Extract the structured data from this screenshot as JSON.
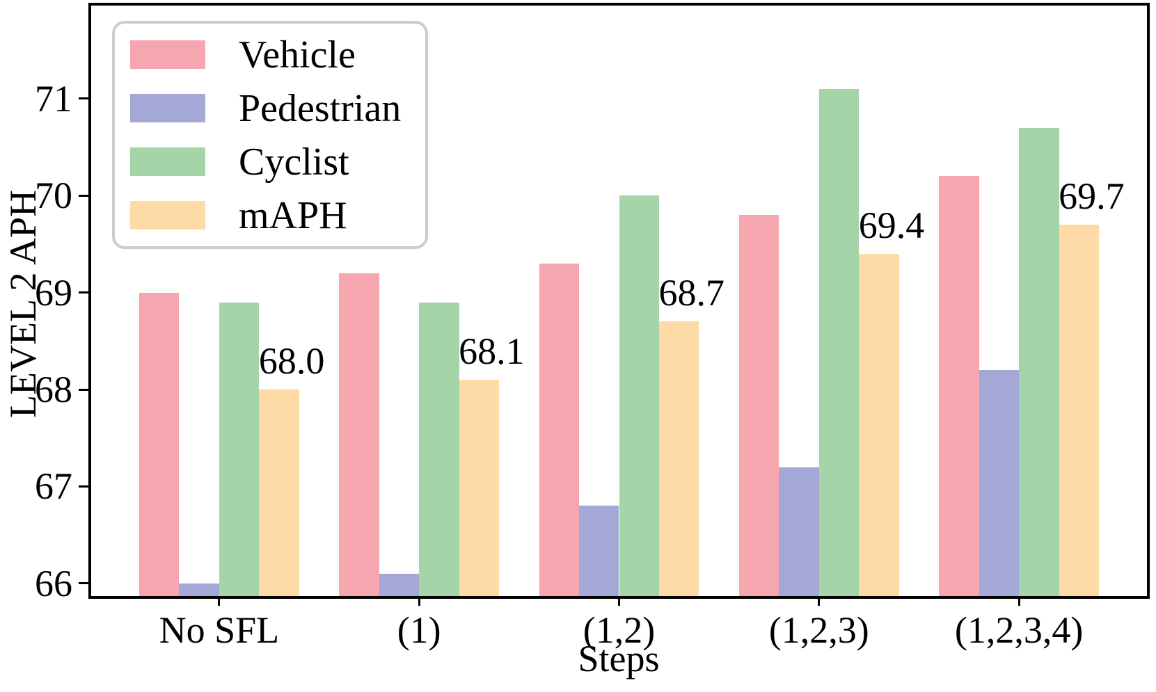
{
  "chart_data": {
    "type": "bar",
    "title": "",
    "xlabel": "Steps",
    "ylabel": "LEVEL 2 APH",
    "categories": [
      "No SFL",
      "(1)",
      "(1,2)",
      "(1,2,3)",
      "(1,2,3,4)"
    ],
    "series": [
      {
        "name": "Vehicle",
        "color": "#f5a6af",
        "values": [
          69.0,
          69.2,
          69.3,
          69.8,
          70.2
        ]
      },
      {
        "name": "Pedestrian",
        "color": "#a3a8d7",
        "values": [
          66.0,
          66.1,
          66.8,
          67.2,
          68.2
        ]
      },
      {
        "name": "Cyclist",
        "color": "#a5d4a9",
        "values": [
          68.9,
          68.9,
          70.0,
          71.1,
          70.7
        ]
      },
      {
        "name": "mAPH",
        "color": "#fddaa6",
        "values": [
          68.0,
          68.1,
          68.7,
          69.4,
          69.7
        ]
      }
    ],
    "bar_labels": {
      "series": "mAPH",
      "texts": [
        "68.0",
        "68.1",
        "68.7",
        "69.4",
        "69.7"
      ]
    },
    "yticks": [
      "66",
      "67",
      "68",
      "69",
      "70",
      "71"
    ],
    "ylim": [
      65.87,
      71.96
    ],
    "x_layout": {
      "left_pad_units": 0.64,
      "right_pad_units": 0.64,
      "bar_width_units": 0.2
    },
    "legend_position": "upper left",
    "grid": false,
    "axis_color": "#000000",
    "legend_border_color": "#cccccc",
    "text_color": "#000000"
  }
}
